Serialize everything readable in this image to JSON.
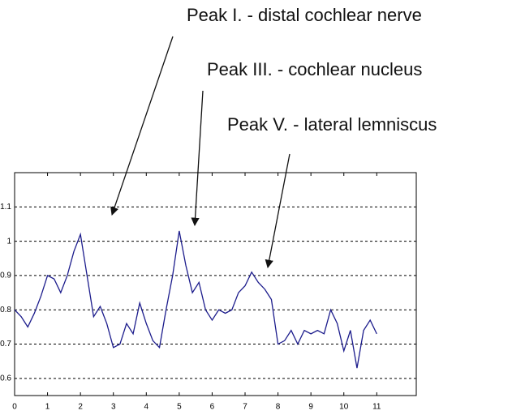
{
  "chart_data": {
    "type": "line",
    "annotations": [
      "Peak I. - distal cochlear nerve",
      "Peak III. - cochlear nucleus",
      "Peak V. - lateral lemniscus"
    ],
    "x": [
      0,
      0.2,
      0.4,
      0.6,
      0.8,
      1,
      1.2,
      1.4,
      1.6,
      1.8,
      2,
      2.2,
      2.4,
      2.6,
      2.8,
      3,
      3.2,
      3.4,
      3.6,
      3.8,
      4,
      4.2,
      4.4,
      4.6,
      4.8,
      5,
      5.2,
      5.4,
      5.6,
      5.8,
      6,
      6.2,
      6.4,
      6.6,
      6.8,
      7,
      7.2,
      7.4,
      7.6,
      7.8,
      8,
      8.2,
      8.4,
      8.6,
      8.8,
      9,
      9.2,
      9.4,
      9.6,
      9.8,
      10,
      10.2,
      10.4,
      10.6,
      10.8,
      11
    ],
    "series": [
      {
        "color": "#1c1c8c",
        "values": [
          0.8,
          0.78,
          0.75,
          0.79,
          0.84,
          0.9,
          0.89,
          0.85,
          0.9,
          0.97,
          1.02,
          0.9,
          0.78,
          0.81,
          0.76,
          0.69,
          0.7,
          0.76,
          0.73,
          0.82,
          0.76,
          0.71,
          0.69,
          0.8,
          0.9,
          1.03,
          0.93,
          0.85,
          0.88,
          0.8,
          0.77,
          0.8,
          0.79,
          0.8,
          0.85,
          0.87,
          0.91,
          0.88,
          0.86,
          0.83,
          0.7,
          0.71,
          0.74,
          0.7,
          0.74,
          0.73,
          0.74,
          0.73,
          0.8,
          0.76,
          0.68,
          0.74,
          0.63,
          0.74,
          0.77,
          0.73
        ]
      }
    ],
    "xlim": [
      0,
      12.2
    ],
    "xticks": [
      0,
      1,
      2,
      3,
      4,
      5,
      6,
      7,
      8,
      9,
      10,
      11
    ],
    "ylim": [
      0.55,
      1.2
    ],
    "yticks": [
      0.6,
      0.7,
      0.8,
      0.9,
      1,
      1.1
    ],
    "grid": true
  }
}
